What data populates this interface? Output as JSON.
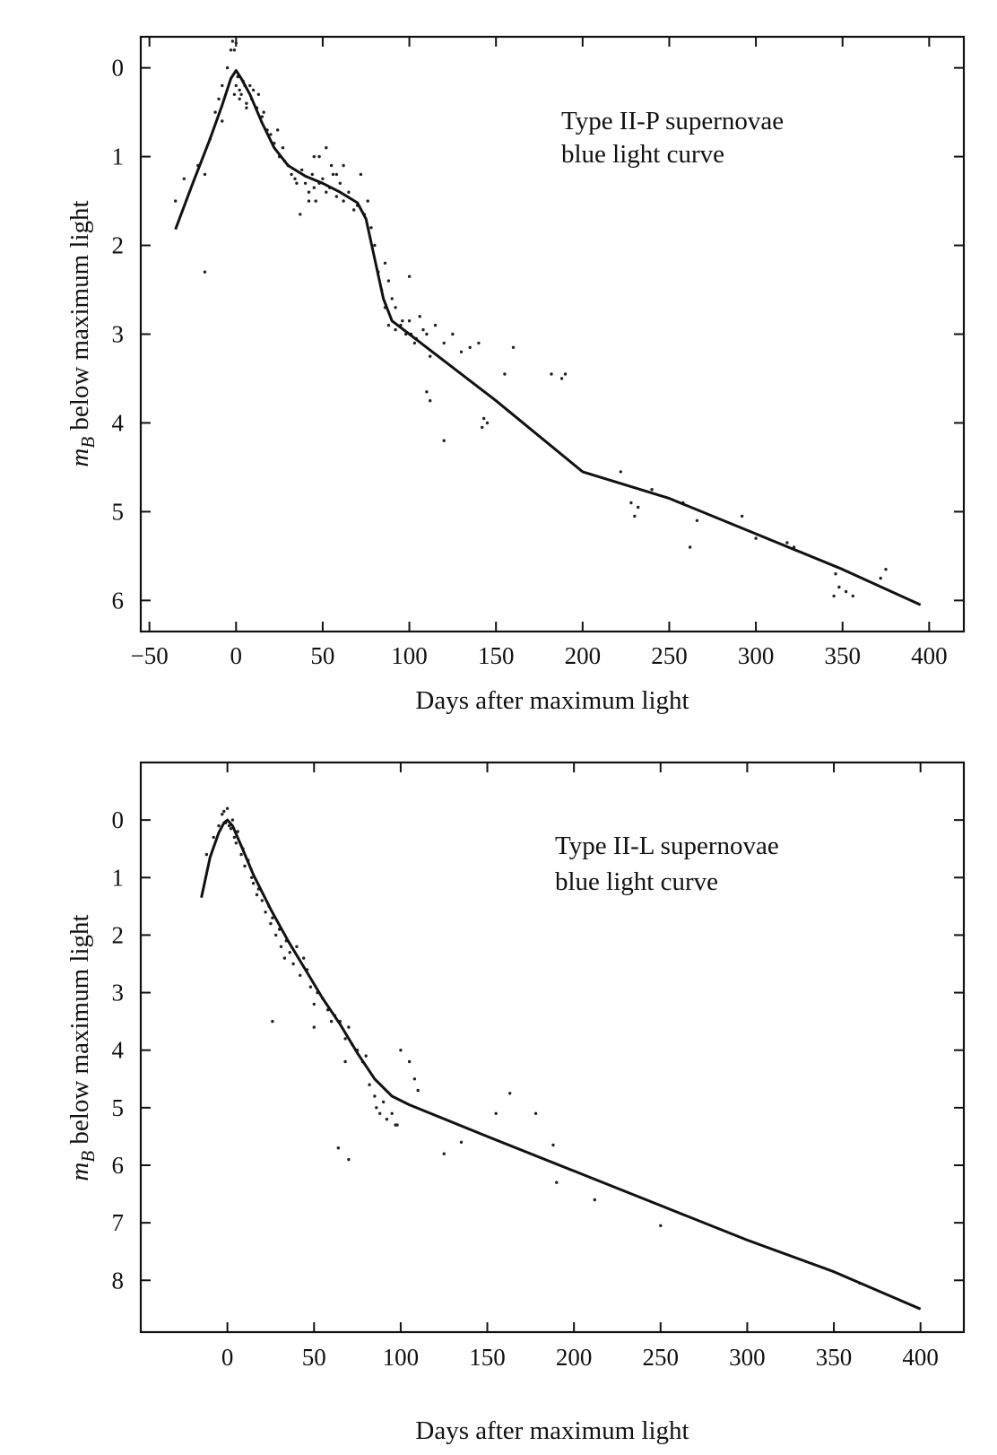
{
  "chart_data": [
    {
      "type": "line",
      "subtype": "light-curve with scattered observations",
      "annotation_lines": [
        "Type II-P supernovae",
        "blue light curve"
      ],
      "xlabel": "Days after maximum light",
      "ylabel_main": "m",
      "ylabel_sub": "B",
      "ylabel_rest": " below maximum light",
      "xlim": [
        -55,
        420
      ],
      "ylim": [
        -0.35,
        6.35
      ],
      "y_inverted": true,
      "grid": false,
      "x_ticks": [
        -50,
        0,
        50,
        100,
        150,
        200,
        250,
        300,
        350,
        400
      ],
      "x_tick_labels": [
        "−50",
        "0",
        "50",
        "100",
        "150",
        "200",
        "250",
        "300",
        "350",
        "400"
      ],
      "y_ticks": [
        0,
        1,
        2,
        3,
        4,
        5,
        6
      ],
      "y_tick_labels": [
        "0",
        "1",
        "2",
        "3",
        "4",
        "5",
        "6"
      ],
      "series": [
        {
          "kind": "curve",
          "x": [
            -35,
            -25,
            -15,
            -8,
            -3,
            0,
            3,
            8,
            15,
            22,
            30,
            40,
            50,
            60,
            70,
            75,
            80,
            85,
            90,
            100,
            120,
            150,
            175,
            200,
            250,
            300,
            350,
            395
          ],
          "y": [
            1.82,
            1.3,
            0.8,
            0.42,
            0.12,
            0.03,
            0.12,
            0.3,
            0.62,
            0.9,
            1.1,
            1.22,
            1.3,
            1.4,
            1.52,
            1.7,
            2.15,
            2.6,
            2.85,
            3.0,
            3.3,
            3.75,
            4.15,
            4.55,
            4.85,
            5.25,
            5.65,
            6.05
          ]
        },
        {
          "kind": "points",
          "x": [
            -35,
            -30,
            -22,
            -18,
            -15,
            -12,
            -10,
            -8,
            -5,
            -3,
            -2,
            0,
            1,
            2,
            3,
            4,
            5,
            -1,
            6,
            8,
            9,
            10,
            12,
            13,
            15,
            16,
            18,
            20,
            22,
            24,
            25,
            27,
            28,
            30,
            32,
            34,
            35,
            38,
            40,
            42,
            44,
            45,
            46,
            48,
            50,
            52,
            54,
            55,
            56,
            58,
            60,
            62,
            65,
            68,
            70,
            72,
            74,
            76,
            78,
            80,
            82,
            84,
            86,
            88,
            90,
            92,
            95,
            98,
            100,
            103,
            106,
            110,
            115,
            120,
            125,
            130,
            135,
            140,
            145,
            160,
            182,
            188,
            222,
            228,
            232,
            240,
            262,
            266,
            292,
            300,
            318,
            322,
            348,
            352,
            346,
            372,
            -8,
            -18,
            110,
            112,
            120,
            142,
            143,
            155,
            190,
            230,
            258,
            345,
            356,
            375,
            0,
            2,
            4,
            6,
            -1,
            45,
            48,
            52,
            58,
            62,
            86,
            88,
            92,
            96,
            101,
            104,
            108,
            112,
            100,
            37,
            42
          ],
          "y": [
            1.5,
            1.25,
            1.1,
            2.3,
            0.8,
            0.5,
            0.35,
            0.2,
            0.0,
            -0.2,
            -0.3,
            -0.28,
            0.1,
            0.25,
            0.3,
            0.15,
            0.2,
            0.3,
            0.4,
            0.2,
            0.35,
            0.25,
            0.45,
            0.3,
            0.55,
            0.5,
            0.7,
            0.75,
            0.85,
            0.7,
            1.0,
            0.9,
            1.05,
            1.1,
            1.2,
            1.25,
            1.3,
            1.15,
            1.3,
            1.4,
            1.2,
            1.0,
            1.5,
            1.3,
            1.25,
            0.9,
            1.35,
            1.1,
            1.2,
            1.45,
            1.3,
            1.5,
            1.4,
            1.6,
            1.55,
            1.2,
            1.65,
            1.5,
            1.8,
            2.0,
            2.3,
            2.5,
            2.7,
            2.9,
            2.6,
            2.7,
            2.9,
            3.0,
            2.85,
            3.1,
            2.8,
            3.0,
            2.9,
            3.1,
            3.0,
            3.2,
            3.15,
            3.1,
            4.0,
            3.15,
            3.45,
            3.5,
            4.55,
            4.9,
            4.95,
            4.75,
            5.4,
            5.1,
            5.05,
            5.3,
            5.35,
            5.4,
            5.85,
            5.9,
            5.7,
            5.75,
            0.6,
            1.2,
            3.65,
            3.75,
            4.2,
            4.05,
            3.95,
            3.45,
            3.45,
            5.05,
            4.9,
            5.95,
            5.95,
            5.65,
            0.2,
            0.35,
            0.15,
            0.45,
            -0.2,
            1.35,
            1.0,
            1.4,
            1.2,
            1.1,
            2.2,
            2.4,
            2.95,
            2.85,
            3.0,
            3.05,
            2.95,
            3.25,
            2.35,
            1.65,
            1.5
          ]
        }
      ]
    },
    {
      "type": "line",
      "subtype": "light-curve with scattered observations",
      "annotation_lines": [
        "Type II-L supernovae",
        "blue light curve"
      ],
      "xlabel": "Days after maximum light",
      "ylabel_main": "m",
      "ylabel_sub": "B",
      "ylabel_rest": " below maximum light",
      "xlim": [
        -50,
        425
      ],
      "ylim": [
        -1.0,
        8.9
      ],
      "y_inverted": true,
      "grid": false,
      "x_ticks": [
        0,
        50,
        100,
        150,
        200,
        250,
        300,
        350,
        400
      ],
      "x_tick_labels": [
        "0",
        "50",
        "100",
        "150",
        "200",
        "250",
        "300",
        "350",
        "400"
      ],
      "y_ticks": [
        0,
        1,
        2,
        3,
        4,
        5,
        6,
        7,
        8
      ],
      "y_tick_labels": [
        "0",
        "1",
        "2",
        "3",
        "4",
        "5",
        "6",
        "7",
        "8"
      ],
      "series": [
        {
          "kind": "curve",
          "x": [
            -15,
            -10,
            -5,
            -2,
            0,
            3,
            8,
            15,
            25,
            35,
            45,
            55,
            65,
            75,
            85,
            95,
            105,
            150,
            200,
            250,
            300,
            350,
            400
          ],
          "y": [
            1.35,
            0.65,
            0.22,
            0.05,
            0.0,
            0.1,
            0.45,
            0.95,
            1.55,
            2.1,
            2.6,
            3.1,
            3.55,
            4.05,
            4.5,
            4.8,
            4.95,
            5.5,
            6.1,
            6.7,
            7.3,
            7.85,
            8.5
          ]
        },
        {
          "kind": "points",
          "x": [
            -12,
            -8,
            -5,
            -3,
            -2,
            -1,
            0,
            1,
            2,
            3,
            4,
            5,
            6,
            8,
            9,
            10,
            12,
            14,
            15,
            17,
            18,
            20,
            22,
            24,
            25,
            26,
            28,
            30,
            31,
            33,
            34,
            36,
            38,
            40,
            42,
            44,
            46,
            48,
            50,
            52,
            55,
            58,
            60,
            62,
            65,
            68,
            70,
            72,
            75,
            78,
            80,
            82,
            85,
            86,
            88,
            90,
            92,
            95,
            97,
            100,
            105,
            108,
            110,
            125,
            135,
            155,
            163,
            178,
            188,
            190,
            212,
            250,
            365,
            26,
            50,
            64,
            70,
            68,
            98
          ],
          "y": [
            0.6,
            0.3,
            0.1,
            -0.1,
            -0.15,
            0.05,
            -0.2,
            0.1,
            0.15,
            0.0,
            0.3,
            0.4,
            0.2,
            0.6,
            0.5,
            0.8,
            0.7,
            1.0,
            1.1,
            1.3,
            1.2,
            1.4,
            1.6,
            1.5,
            1.8,
            1.7,
            2.0,
            1.9,
            2.2,
            2.4,
            2.1,
            2.3,
            2.5,
            2.2,
            2.7,
            2.4,
            2.6,
            2.9,
            3.2,
            3.0,
            3.1,
            3.3,
            3.5,
            3.4,
            3.5,
            3.8,
            3.6,
            3.9,
            4.0,
            4.2,
            4.1,
            4.6,
            4.8,
            5.0,
            5.1,
            4.9,
            5.2,
            5.1,
            5.3,
            4.0,
            4.2,
            4.5,
            4.7,
            5.8,
            5.6,
            5.1,
            4.75,
            5.1,
            5.65,
            6.3,
            6.6,
            7.05,
            8.05,
            3.5,
            3.6,
            5.7,
            5.9,
            4.2,
            5.3
          ]
        }
      ]
    }
  ]
}
